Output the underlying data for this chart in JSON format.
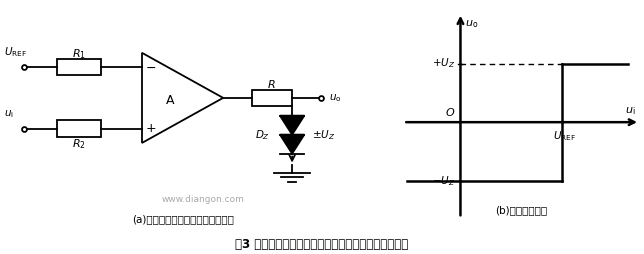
{
  "title": "图3 具有输出限幅功能的电压比较器及其电压传输特性",
  "caption_a": "(a)具有输出限幅功能的电压比较器",
  "caption_b": "(b)电压传输特性",
  "watermark": "www.diangon.com",
  "bg_color": "#ffffff",
  "line_color": "#000000",
  "fig_width": 6.44,
  "fig_height": 2.54,
  "dpi": 100
}
